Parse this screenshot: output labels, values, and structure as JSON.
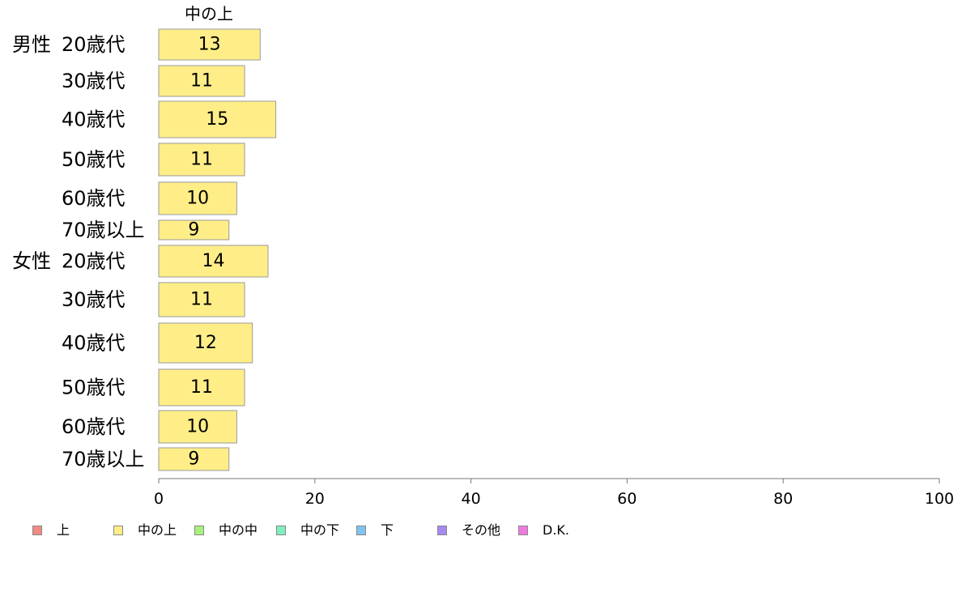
{
  "chart_data": {
    "type": "bar",
    "orientation": "horizontal",
    "series_header": "中の上",
    "groups": [
      "男性",
      "女性"
    ],
    "categories": [
      "20歳代",
      "30歳代",
      "40歳代",
      "50歳代",
      "60歳代",
      "70歳以上",
      "20歳代",
      "30歳代",
      "40歳代",
      "50歳代",
      "60歳代",
      "70歳以上"
    ],
    "category_group_labels": [
      "男性",
      "",
      "",
      "",
      "",
      "",
      "女性",
      "",
      "",
      "",
      "",
      ""
    ],
    "series": [
      {
        "name": "中の上",
        "color": "#ffee88",
        "values": [
          13,
          11,
          15,
          11,
          10,
          9,
          14,
          11,
          12,
          11,
          10,
          9
        ]
      }
    ],
    "xlim": [
      0,
      100
    ],
    "xticks": [
      0,
      20,
      40,
      60,
      80,
      100
    ],
    "grid": false,
    "legend": {
      "placement": "bottom",
      "items": [
        {
          "label": "上",
          "color": "#f28a80"
        },
        {
          "label": "中の上",
          "color": "#ffee88"
        },
        {
          "label": "中の中",
          "color": "#a8f07a"
        },
        {
          "label": "中の下",
          "color": "#7ff0c0"
        },
        {
          "label": "下",
          "color": "#80c4f0"
        },
        {
          "label": "その他",
          "color": "#a68af0"
        },
        {
          "label": "D.K.",
          "color": "#f07ae0"
        }
      ]
    }
  }
}
